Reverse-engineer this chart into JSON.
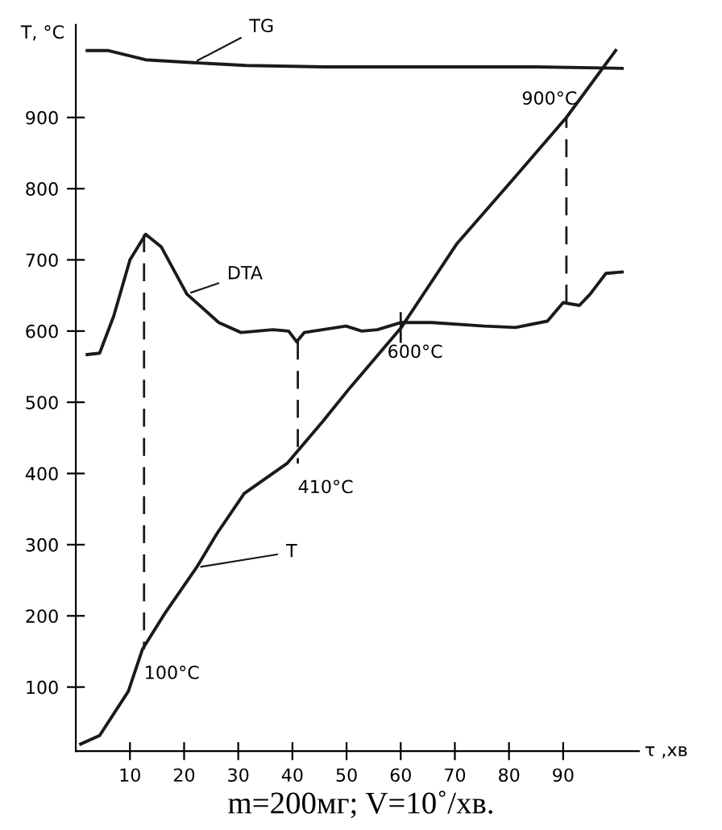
{
  "chart_data": {
    "type": "line",
    "xlabel": "τ ,хв",
    "ylabel": "T, °C",
    "xlim": [
      0,
      104
    ],
    "ylim": [
      10,
      1030
    ],
    "xticks": [
      10,
      20,
      30,
      40,
      50,
      60,
      70,
      80,
      90
    ],
    "yticks": [
      100,
      200,
      300,
      400,
      500,
      600,
      700,
      800,
      900
    ],
    "series": [
      {
        "name": "TG",
        "color": "#1a1a1a",
        "x": [
          2.1,
          5.9,
          12.9,
          21.7,
          31.4,
          46,
          65.7,
          85,
          100.9
        ],
        "values": [
          994,
          994,
          981,
          977,
          973,
          971,
          971,
          971,
          969
        ]
      },
      {
        "name": "DTA",
        "color": "#1a1a1a",
        "x": [
          2.1,
          4.4,
          7.0,
          10.0,
          12.9,
          15.8,
          20.5,
          26.4,
          30.5,
          36.4,
          39.3,
          40.8,
          42.2,
          49.9,
          52.8,
          55.7,
          60.1,
          65.7,
          75.4,
          81.2,
          87.1,
          90.0,
          93.0,
          95.0,
          97.9,
          100.9
        ],
        "values": [
          567,
          569,
          621,
          700,
          736,
          718,
          652,
          612,
          598,
          602,
          600,
          585,
          598,
          607,
          600,
          602,
          612,
          612,
          607,
          605,
          614,
          640,
          636,
          652,
          681,
          683
        ]
      },
      {
        "name": "T",
        "color": "#1a1a1a",
        "x": [
          0.9,
          4.4,
          9.7,
          12.3,
          16.4,
          22.3,
          26.1,
          31.1,
          39,
          45.7,
          50.7,
          60,
          70.4,
          80.4,
          90.6,
          99.7
        ],
        "values": [
          20,
          32,
          94,
          153,
          203,
          268,
          316,
          372,
          414,
          474,
          521,
          604,
          723,
          810,
          900,
          994
        ]
      },
      {
        "color": "#1a1a1a",
        "line_style": "dashed",
        "x": [
          12.6,
          12.6
        ],
        "values": [
          736,
          153
        ]
      },
      {
        "color": "#1a1a1a",
        "line_style": "dashed",
        "x": [
          41,
          41
        ],
        "values": [
          585,
          414
        ]
      },
      {
        "color": "#1a1a1a",
        "line_style": "solid",
        "x": [
          60,
          60
        ],
        "values": [
          625,
          585
        ]
      },
      {
        "color": "#1a1a1a",
        "line_style": "dashed",
        "x": [
          90.6,
          90.6
        ],
        "values": [
          640,
          900
        ]
      }
    ],
    "annotations": [
      {
        "text": "100°C",
        "x": 12.6,
        "y": 153
      },
      {
        "text": "410°C",
        "x": 41,
        "y": 414
      },
      {
        "text": "600°C",
        "x": 60,
        "y": 604
      },
      {
        "text": "900°C",
        "x": 90.6,
        "y": 900
      },
      "m=200мг; V=10˚/хв."
    ],
    "grid": false
  }
}
